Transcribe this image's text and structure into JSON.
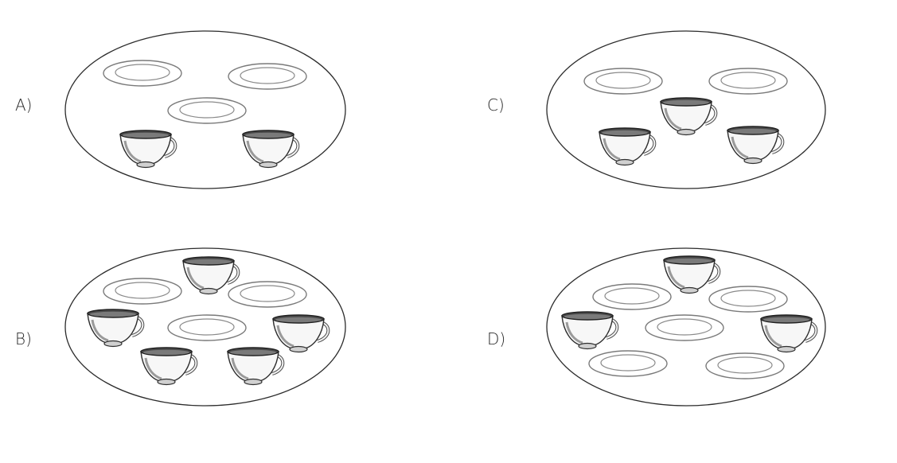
{
  "options": [
    {
      "id": "A",
      "label": "A)",
      "plates": 3,
      "cups": 2
    },
    {
      "id": "C",
      "label": "C)",
      "plates": 2,
      "cups": 3
    },
    {
      "id": "B",
      "label": "B)",
      "plates": 3,
      "cups": 5
    },
    {
      "id": "D",
      "label": "D)",
      "plates": 5,
      "cups": 3
    }
  ]
}
